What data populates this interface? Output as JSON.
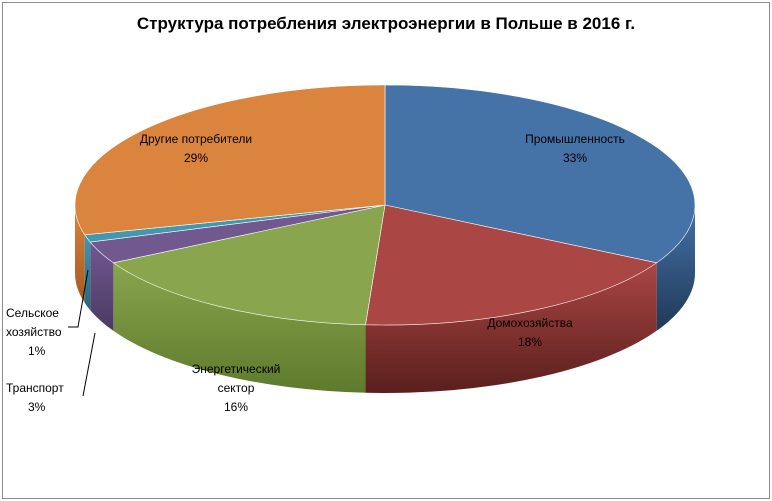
{
  "chart_data": {
    "type": "pie",
    "title": "Структура потребления электроэнергии  в Польше в 2016 г.",
    "slices": [
      {
        "label_lines": [
          "Промышленность"
        ],
        "pct": "33%",
        "value": 33,
        "color": "#4572a7",
        "dark": "#1f3957"
      },
      {
        "label_lines": [
          "Домохозяйства"
        ],
        "pct": "18%",
        "value": 18,
        "color": "#aa4643",
        "dark": "#5a1f1d"
      },
      {
        "label_lines": [
          "Энергетический",
          "сектор"
        ],
        "pct": "16%",
        "value": 16,
        "color": "#89a54e",
        "dark": "#5e7a2c"
      },
      {
        "label_lines": [
          "Транспорт"
        ],
        "pct": "3%",
        "value": 3,
        "color": "#71588f",
        "dark": "#4b3a63"
      },
      {
        "label_lines": [
          "Сельское",
          "хозяйство"
        ],
        "pct": "1%",
        "value": 1,
        "color": "#4198af",
        "dark": "#24687a"
      },
      {
        "label_lines": [
          "Другие потребители"
        ],
        "pct": "29%",
        "value": 29,
        "color": "#db843d",
        "dark": "#a35a1f"
      }
    ]
  }
}
